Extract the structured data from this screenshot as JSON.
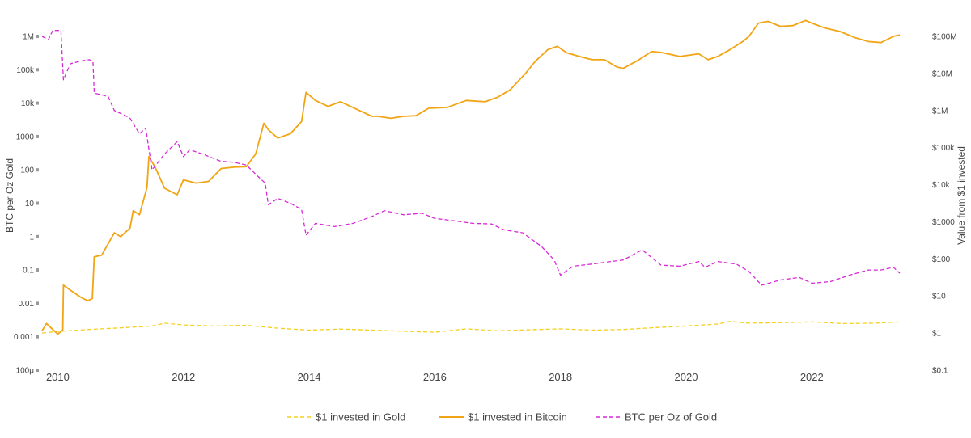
{
  "chart_data": {
    "type": "line",
    "title": "",
    "xlabel": "",
    "ylabel_left": "BTC per Oz Gold",
    "ylabel_right": "Value from $1 invested",
    "x_ticks": [
      "2010",
      "2012",
      "2014",
      "2016",
      "2018",
      "2020",
      "2022"
    ],
    "x_range": [
      2009.75,
      2023.4
    ],
    "y_left_ticks": [
      "1M",
      "100k",
      "10k",
      "1000",
      "100",
      "10",
      "1",
      "0.1",
      "0.01",
      "0.001",
      "100μ"
    ],
    "y_left_range_log10": [
      -4,
      6
    ],
    "y_right_ticks": [
      "$100M",
      "$10M",
      "$1M",
      "$100k",
      "$10k",
      "$1000",
      "$100",
      "$10",
      "$1",
      "$0.1"
    ],
    "y_right_range_log10": [
      -1,
      8
    ],
    "colors": {
      "gold": "#f5d020",
      "bitcoin": "#f2a514",
      "ratio": "#d62ad6"
    },
    "series": [
      {
        "name": "$1 invested in Gold",
        "axis": "right",
        "dash": "dash",
        "color": "#f5d020",
        "x": [
          2009.75,
          2010.0,
          2010.5,
          2011.0,
          2011.5,
          2011.7,
          2012.0,
          2012.5,
          2013.0,
          2013.5,
          2014.0,
          2014.5,
          2015.0,
          2015.5,
          2016.0,
          2016.5,
          2017.0,
          2017.5,
          2018.0,
          2018.5,
          2019.0,
          2019.5,
          2020.0,
          2020.5,
          2020.7,
          2021.0,
          2021.5,
          2022.0,
          2022.5,
          2023.0,
          2023.4
        ],
        "y": [
          1.0,
          1.1,
          1.25,
          1.38,
          1.55,
          1.85,
          1.65,
          1.55,
          1.62,
          1.35,
          1.2,
          1.28,
          1.2,
          1.12,
          1.05,
          1.3,
          1.15,
          1.22,
          1.3,
          1.2,
          1.25,
          1.4,
          1.55,
          1.75,
          2.05,
          1.85,
          1.9,
          2.0,
          1.8,
          1.85,
          2.0
        ]
      },
      {
        "name": "$1 invested in Bitcoin",
        "axis": "left",
        "dash": "solid",
        "color": "#f2a514",
        "x": [
          2009.75,
          2009.82,
          2009.9,
          2010.0,
          2010.08,
          2010.09,
          2010.2,
          2010.35,
          2010.4,
          2010.48,
          2010.55,
          2010.58,
          2010.7,
          2010.9,
          2011.0,
          2011.15,
          2011.2,
          2011.3,
          2011.42,
          2011.45,
          2011.55,
          2011.7,
          2011.9,
          2012.0,
          2012.2,
          2012.4,
          2012.6,
          2012.8,
          2013.0,
          2013.15,
          2013.28,
          2013.35,
          2013.5,
          2013.7,
          2013.88,
          2013.95,
          2014.1,
          2014.3,
          2014.5,
          2014.8,
          2015.0,
          2015.1,
          2015.3,
          2015.5,
          2015.7,
          2015.9,
          2016.2,
          2016.5,
          2016.8,
          2017.0,
          2017.2,
          2017.45,
          2017.6,
          2017.8,
          2017.95,
          2018.1,
          2018.3,
          2018.5,
          2018.7,
          2018.9,
          2019.0,
          2019.25,
          2019.45,
          2019.6,
          2019.9,
          2020.2,
          2020.35,
          2020.5,
          2020.7,
          2020.9,
          2021.0,
          2021.15,
          2021.3,
          2021.5,
          2021.7,
          2021.9,
          2022.0,
          2022.2,
          2022.45,
          2022.7,
          2022.9,
          2023.1,
          2023.3,
          2023.4
        ],
        "y": [
          0.0015,
          0.0025,
          0.0018,
          0.0012,
          0.0016,
          0.035,
          0.025,
          0.016,
          0.014,
          0.012,
          0.014,
          0.25,
          0.28,
          1.3,
          1.0,
          1.8,
          6.0,
          4.5,
          30,
          250,
          120,
          28,
          18,
          50,
          40,
          45,
          110,
          120,
          125,
          300,
          2500,
          1600,
          900,
          1200,
          2800,
          21000,
          12000,
          8000,
          11000,
          6000,
          4000,
          4000,
          3500,
          4000,
          4200,
          7000,
          7500,
          12000,
          11000,
          15000,
          25000,
          80000,
          180000,
          400000,
          500000,
          320000,
          250000,
          200000,
          200000,
          120000,
          110000,
          200000,
          350000,
          330000,
          250000,
          300000,
          200000,
          250000,
          400000,
          700000,
          1000000,
          2500000,
          2800000,
          2000000,
          2100000,
          3000000,
          2500000,
          1800000,
          1400000,
          900000,
          700000,
          650000,
          1000000,
          1100000
        ]
      },
      {
        "name": "BTC per Oz of Gold",
        "axis": "left",
        "dash": "dash",
        "color": "#d62ad6",
        "x": [
          2009.75,
          2009.85,
          2009.92,
          2010.05,
          2010.09,
          2010.2,
          2010.35,
          2010.5,
          2010.56,
          2010.58,
          2010.8,
          2010.9,
          2011.1,
          2011.15,
          2011.3,
          2011.4,
          2011.5,
          2011.7,
          2011.9,
          2012.0,
          2012.1,
          2012.3,
          2012.6,
          2012.8,
          2013.0,
          2013.2,
          2013.3,
          2013.35,
          2013.5,
          2013.7,
          2013.88,
          2013.95,
          2014.1,
          2014.4,
          2014.7,
          2015.0,
          2015.2,
          2015.5,
          2015.8,
          2016.0,
          2016.3,
          2016.6,
          2016.9,
          2017.1,
          2017.4,
          2017.7,
          2017.9,
          2018.0,
          2018.2,
          2018.5,
          2018.8,
          2019.0,
          2019.3,
          2019.6,
          2019.9,
          2020.2,
          2020.3,
          2020.5,
          2020.8,
          2021.0,
          2021.2,
          2021.5,
          2021.8,
          2022.0,
          2022.3,
          2022.6,
          2022.9,
          2023.1,
          2023.3,
          2023.4
        ],
        "y": [
          1000000,
          800000,
          1500000,
          1500000,
          50000,
          150000,
          180000,
          200000,
          180000,
          20000,
          16000,
          6000,
          4000,
          3500,
          1200,
          1800,
          100,
          300,
          700,
          250,
          400,
          300,
          180,
          170,
          140,
          60,
          40,
          9,
          14,
          10,
          6.5,
          1.1,
          2.5,
          2.0,
          2.5,
          4.0,
          6.0,
          4.5,
          5.0,
          3.5,
          3.0,
          2.5,
          2.4,
          1.6,
          1.3,
          0.5,
          0.2,
          0.07,
          0.13,
          0.15,
          0.18,
          0.2,
          0.4,
          0.14,
          0.13,
          0.18,
          0.12,
          0.18,
          0.15,
          0.09,
          0.035,
          0.05,
          0.06,
          0.04,
          0.045,
          0.07,
          0.1,
          0.1,
          0.12,
          0.08
        ]
      }
    ],
    "legend_position": "bottom-center",
    "grid": false
  }
}
